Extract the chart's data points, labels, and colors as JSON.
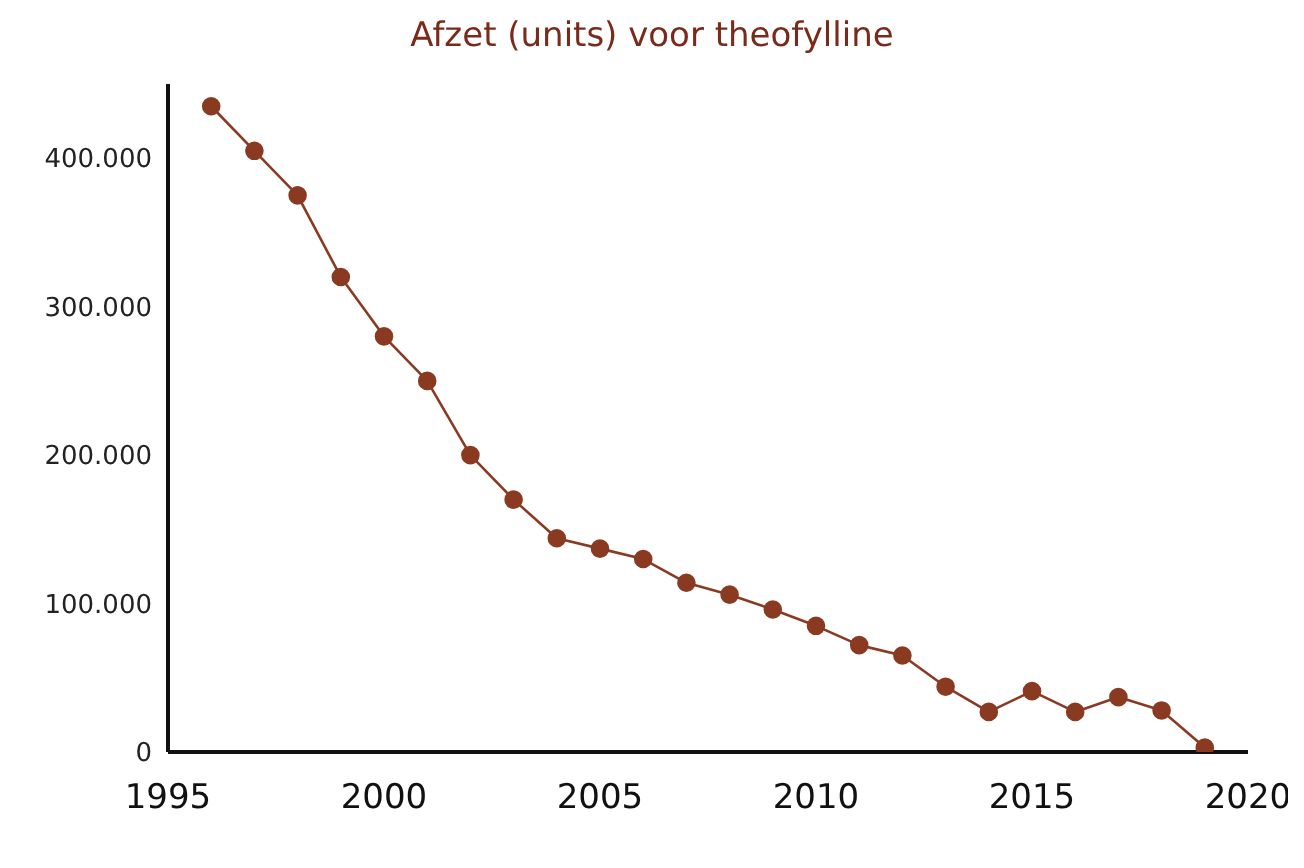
{
  "chart_data": {
    "type": "line",
    "title": "Afzet (units) voor theofylline",
    "x": [
      1996,
      1997,
      1998,
      1999,
      2000,
      2001,
      2002,
      2003,
      2004,
      2005,
      2006,
      2007,
      2008,
      2009,
      2010,
      2011,
      2012,
      2013,
      2014,
      2015,
      2016,
      2017,
      2018,
      2019
    ],
    "series": [
      {
        "color": "#8b3a22",
        "values": [
          435000,
          405000,
          375000,
          320000,
          280000,
          250000,
          200000,
          170000,
          144000,
          137000,
          130000,
          114000,
          106000,
          96000,
          85000,
          72000,
          65000,
          44000,
          27000,
          41000,
          27000,
          37000,
          28000,
          3000
        ]
      }
    ],
    "xlim": [
      1995,
      2020
    ],
    "xticks": [
      1995,
      2000,
      2005,
      2010,
      2015,
      2020
    ],
    "ylim": [
      0,
      450000
    ],
    "yticks": [
      {
        "value": 0,
        "label": "0"
      },
      {
        "value": 100000,
        "label": "100.000"
      },
      {
        "value": 200000,
        "label": "200.000"
      },
      {
        "value": 300000,
        "label": "300.000"
      },
      {
        "value": 400000,
        "label": "400.000"
      }
    ],
    "grid": false,
    "legend": false,
    "marker": "circle",
    "line_style": "solid"
  }
}
